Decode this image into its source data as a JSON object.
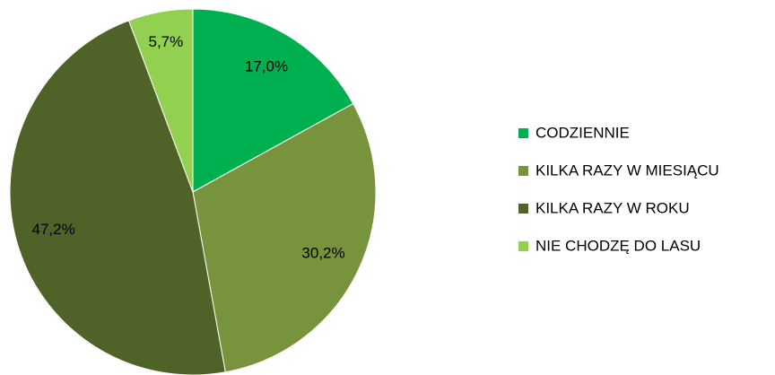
{
  "chart_data": {
    "type": "pie",
    "categories": [
      "CODZIENNIE",
      "KILKA RAZY W MIESIĄCU",
      "KILKA RAZY W ROKU",
      "NIE CHODZĘ DO LASU"
    ],
    "values": [
      17.0,
      30.2,
      47.2,
      5.7
    ],
    "value_labels": [
      "17,0%",
      "30,2%",
      "47,2%",
      "5,7%"
    ],
    "colors": [
      "#00b050",
      "#77933c",
      "#4f6228",
      "#92d050"
    ],
    "legend": "right"
  }
}
